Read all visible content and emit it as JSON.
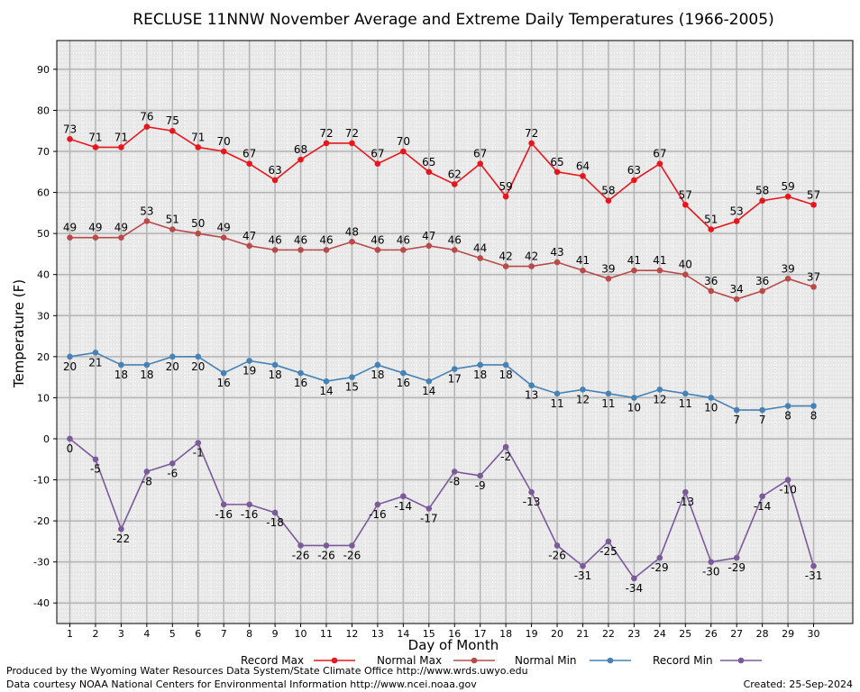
{
  "chart_data": {
    "type": "line",
    "title": "RECLUSE 11NNW November Average and Extreme Daily Temperatures (1966-2005)",
    "xlabel": "Day of Month",
    "ylabel": "Temperature (F)",
    "ylim": [
      -45,
      97
    ],
    "yticks": [
      90,
      80,
      70,
      60,
      50,
      40,
      30,
      20,
      10,
      0,
      -10,
      -20,
      -30,
      -40
    ],
    "x": [
      1,
      2,
      3,
      4,
      5,
      6,
      7,
      8,
      9,
      10,
      11,
      12,
      13,
      14,
      15,
      16,
      17,
      18,
      19,
      20,
      21,
      22,
      23,
      24,
      25,
      26,
      27,
      28,
      29,
      30
    ],
    "grid": true,
    "legend_position": "bottom",
    "series": [
      {
        "name": "Record Max",
        "color": "#e8161c",
        "label_pos": "above",
        "values": [
          73,
          71,
          71,
          76,
          75,
          71,
          70,
          67,
          63,
          68,
          72,
          72,
          67,
          70,
          65,
          62,
          67,
          59,
          72,
          65,
          64,
          58,
          63,
          67,
          57,
          51,
          53,
          58,
          59,
          57
        ]
      },
      {
        "name": "Normal Max",
        "color": "#b94a4a",
        "label_pos": "above",
        "values": [
          49,
          49,
          49,
          53,
          51,
          50,
          49,
          47,
          46,
          46,
          46,
          48,
          46,
          46,
          47,
          46,
          44,
          42,
          42,
          43,
          41,
          39,
          41,
          41,
          40,
          36,
          34,
          36,
          39,
          37
        ]
      },
      {
        "name": "Normal Min",
        "color": "#4682b4",
        "label_pos": "below",
        "values": [
          20,
          21,
          18,
          18,
          20,
          20,
          16,
          19,
          18,
          16,
          14,
          15,
          18,
          16,
          14,
          17,
          18,
          18,
          13,
          11,
          12,
          11,
          10,
          12,
          11,
          10,
          7,
          7,
          8,
          8
        ]
      },
      {
        "name": "Record Min",
        "color": "#7b5a9a",
        "label_pos": "below",
        "values": [
          0,
          -5,
          -22,
          -8,
          -6,
          -1,
          -16,
          -16,
          -18,
          -26,
          -26,
          -26,
          -16,
          -14,
          -17,
          -8,
          -9,
          -2,
          -13,
          -26,
          -31,
          -25,
          -34,
          -29,
          -13,
          -30,
          -29,
          -14,
          -10,
          -31
        ]
      }
    ],
    "legend_order": [
      "Record Max",
      "Normal Max",
      "Normal Min",
      "Record Min"
    ]
  },
  "footer": {
    "produced_by": "Produced by the Wyoming Water Resources Data System/State Climate Office http://www.wrds.uwyo.edu",
    "courtesy": "Data courtesy NOAA National Centers for Environmental Information http://www.ncei.noaa.gov",
    "created": "Created: 25-Sep-2024"
  }
}
